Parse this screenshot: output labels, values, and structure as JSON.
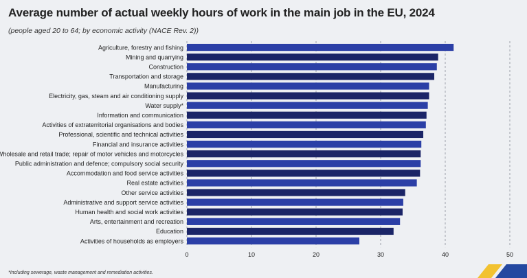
{
  "page": {
    "title": "Average number of actual weekly hours of work in the main job in the EU, 2024",
    "subtitle": "(people aged 20 to 64; by economic activity (NACE Rev. 2))",
    "footnote": "*Including sewerage, waste management and remediation activities."
  },
  "colors": {
    "bar_bright": "#2b3fa6",
    "bar_dark": "#1b2567",
    "grid": "#8a8f99",
    "logo_yellow": "#f2c230",
    "logo_blue": "#2448a0"
  },
  "chart_data": {
    "type": "bar",
    "orientation": "horizontal",
    "title": "Average number of actual weekly hours of work in the main job in the EU, 2024",
    "xlabel": "",
    "ylabel": "",
    "xlim": [
      0,
      50
    ],
    "ticks": [
      0,
      10,
      20,
      30,
      40,
      50
    ],
    "grid": "vertical dashed",
    "categories": [
      "Agriculture, forestry and fishing",
      "Mining and quarrying",
      "Construction",
      "Transportation and storage",
      "Manufacturing",
      "Electricity, gas, steam and air conditioning supply",
      "Water supply*",
      "Information and communication",
      "Activities of extraterritorial organisations and bodies",
      "Professional, scientific and technical activities",
      "Financial and insurance activities",
      "Wholesale and retail trade; repair of motor vehicles and motorcycles",
      "Public administration and defence; compulsory social security",
      "Accommodation and food service activities",
      "Real estate activities",
      "Other service activities",
      "Administrative and support service activities",
      "Human health and social work activities",
      "Arts, entertainment and recreation",
      "Education",
      "Activities of households as employers"
    ],
    "values": [
      41.3,
      38.9,
      38.7,
      38.3,
      37.5,
      37.5,
      37.3,
      37.1,
      37.0,
      36.6,
      36.3,
      36.2,
      36.2,
      36.1,
      35.6,
      33.8,
      33.5,
      33.4,
      33.0,
      32.0,
      26.7
    ],
    "bar_shade": [
      "bright",
      "dark",
      "bright",
      "dark",
      "bright",
      "dark",
      "bright",
      "dark",
      "bright",
      "dark",
      "bright",
      "dark",
      "bright",
      "dark",
      "bright",
      "dark",
      "bright",
      "dark",
      "bright",
      "dark",
      "bright"
    ]
  }
}
